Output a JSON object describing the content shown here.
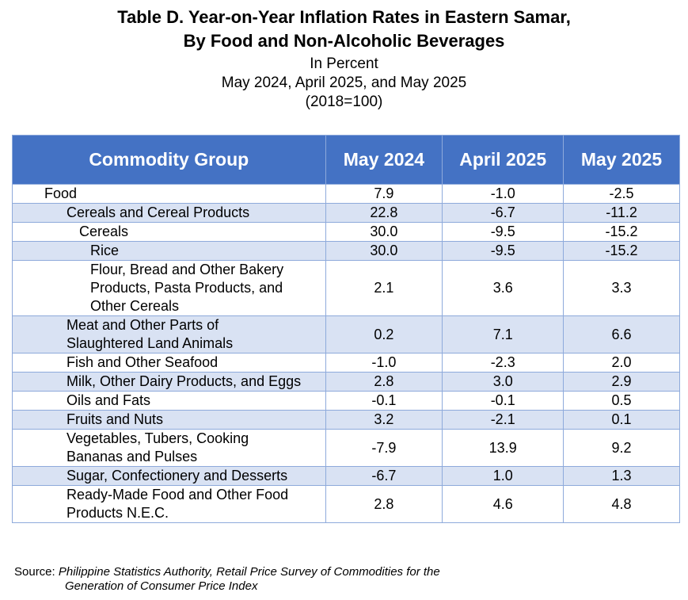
{
  "title": {
    "line1": "Table D. Year-on-Year Inflation Rates in Eastern Samar,",
    "line2": "By Food and Non-Alcoholic Beverages",
    "unit": "In Percent",
    "periods": "May 2024, April 2025, and May 2025",
    "base": "(2018=100)"
  },
  "table": {
    "headers": [
      "Commodity Group",
      "May 2024",
      "April 2025",
      "May 2025"
    ],
    "rows": [
      {
        "name": "Food",
        "level": 0,
        "values": [
          "7.9",
          "-1.0",
          "-2.5"
        ]
      },
      {
        "name": "Cereals and Cereal Products",
        "level": 1,
        "values": [
          "22.8",
          "-6.7",
          "-11.2"
        ]
      },
      {
        "name": "Cereals",
        "level": 2,
        "values": [
          "30.0",
          "-9.5",
          "-15.2"
        ]
      },
      {
        "name": "Rice",
        "level": 3,
        "values": [
          "30.0",
          "-9.5",
          "-15.2"
        ]
      },
      {
        "name": "Flour, Bread and Other Bakery Products, Pasta Products, and Other Cereals",
        "level": 3,
        "values": [
          "2.1",
          "3.6",
          "3.3"
        ]
      },
      {
        "name": "Meat and Other Parts of Slaughtered Land Animals",
        "level": 1,
        "values": [
          "0.2",
          "7.1",
          "6.6"
        ]
      },
      {
        "name": "Fish and Other Seafood",
        "level": 1,
        "values": [
          "-1.0",
          "-2.3",
          "2.0"
        ]
      },
      {
        "name": "Milk, Other Dairy Products, and Eggs",
        "level": 1,
        "values": [
          "2.8",
          "3.0",
          "2.9"
        ]
      },
      {
        "name": "Oils and Fats",
        "level": 1,
        "values": [
          "-0.1",
          "-0.1",
          "0.5"
        ]
      },
      {
        "name": "Fruits and Nuts",
        "level": 1,
        "values": [
          "3.2",
          "-2.1",
          "0.1"
        ]
      },
      {
        "name": "Vegetables, Tubers, Cooking Bananas and Pulses",
        "level": 1,
        "values": [
          "-7.9",
          "13.9",
          "9.2"
        ]
      },
      {
        "name": "Sugar, Confectionery and Desserts",
        "level": 1,
        "values": [
          "-6.7",
          "1.0",
          "1.3"
        ]
      },
      {
        "name": "Ready-Made Food and Other Food Products N.E.C.",
        "level": 1,
        "values": [
          "2.8",
          "4.6",
          "4.8"
        ]
      }
    ]
  },
  "source": {
    "label": "Source:",
    "line1": "Philippine Statistics Authority, Retail Price Survey of Commodities for the",
    "line2": "Generation of Consumer Price Index"
  },
  "colors": {
    "header_bg": "#4472c4",
    "alt_row_bg": "#d9e2f3",
    "border": "#8eaadb"
  }
}
